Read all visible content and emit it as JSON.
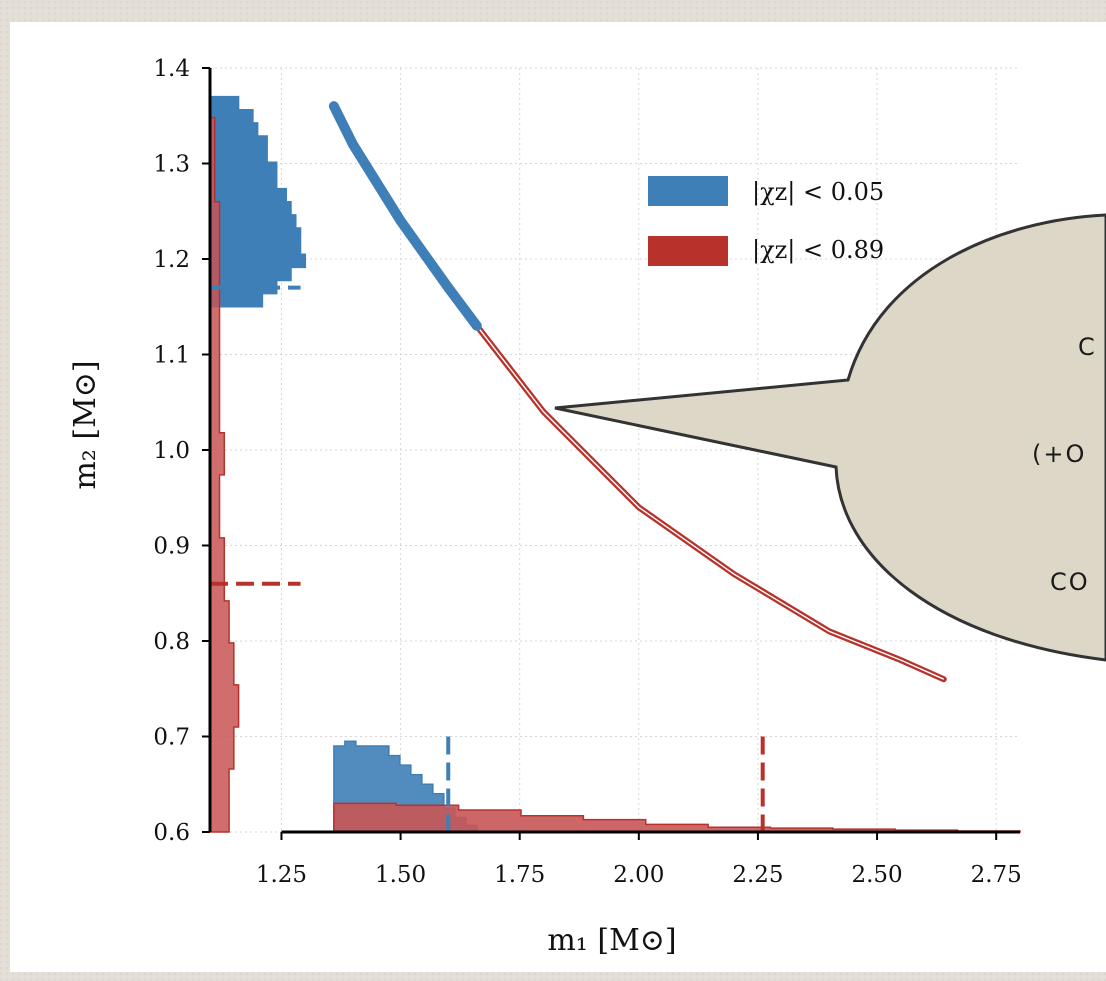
{
  "colors": {
    "blue": "#3f7fb8",
    "red": "#b8322c",
    "red_fill": "#c85555",
    "purple_overlap": "#8a3a48",
    "bubble_fill": "#ddd7c8",
    "bubble_stroke": "#333333"
  },
  "bubble": {
    "lines": [
      "C",
      "(+O",
      "CO"
    ]
  },
  "chart_data": {
    "type": "scatter",
    "xlabel": "m₁ [M⊙]",
    "ylabel": "m₂ [M⊙]",
    "xlim": [
      1.1,
      2.8
    ],
    "ylim": [
      0.6,
      1.4
    ],
    "x_ticks": [
      "1.25",
      "1.50",
      "1.75",
      "2.00",
      "2.25",
      "2.50",
      "2.75"
    ],
    "y_ticks": [
      "0.6",
      "0.7",
      "0.8",
      "0.9",
      "1.0",
      "1.1",
      "1.2",
      "1.3",
      "1.4"
    ],
    "grid": true,
    "legend_position": "top-right",
    "legend": [
      "|χz| < 0.05",
      "|χz| < 0.89"
    ],
    "series": [
      {
        "name": "|χz| < 0.05",
        "color": "#3f7fb8",
        "curve_x": [
          1.36,
          1.4,
          1.45,
          1.5,
          1.55,
          1.6,
          1.66
        ],
        "curve_y": [
          1.36,
          1.32,
          1.28,
          1.24,
          1.205,
          1.17,
          1.13
        ],
        "m1_hist": [
          0.69,
          0.695,
          0.69,
          0.69,
          0.69,
          0.68,
          0.67,
          0.66,
          0.65,
          0.64,
          0.625,
          0.615,
          0.607
        ],
        "m1_hist_range": [
          1.36,
          1.66
        ],
        "m1_median": 1.6,
        "m2_hist": [
          1.21,
          1.24,
          1.27,
          1.3,
          1.29,
          1.29,
          1.28,
          1.27,
          1.26,
          1.24,
          1.24,
          1.22,
          1.22,
          1.2,
          1.19,
          1.16
        ],
        "m2_hist_range": [
          1.15,
          1.37
        ],
        "m2_median": 1.17
      },
      {
        "name": "|χz| < 0.89",
        "color": "#b8322c",
        "curve_x": [
          1.66,
          1.8,
          2.0,
          2.2,
          2.4,
          2.55,
          2.64
        ],
        "curve_y": [
          1.13,
          1.04,
          0.94,
          0.87,
          0.81,
          0.78,
          0.76
        ],
        "m1_hist": [
          0.63,
          0.628,
          0.623,
          0.617,
          0.613,
          0.608,
          0.605,
          0.604,
          0.603,
          0.602,
          0.601
        ],
        "m1_hist_range": [
          1.36,
          2.8
        ],
        "m1_median": 2.26,
        "m2_hist": [
          1.14,
          1.14,
          1.14,
          1.15,
          1.15,
          1.16,
          1.16,
          1.15,
          1.15,
          1.14,
          1.14,
          1.13,
          1.13,
          1.13,
          1.12,
          1.12,
          1.12,
          1.13,
          1.13,
          1.12,
          1.12,
          1.12,
          1.12,
          1.12,
          1.12,
          1.12,
          1.12,
          1.12,
          1.12,
          1.12,
          1.11,
          1.11,
          1.11,
          1.11,
          1.1
        ],
        "m2_hist_range": [
          0.6,
          1.37
        ],
        "m2_median": 0.86
      }
    ]
  }
}
